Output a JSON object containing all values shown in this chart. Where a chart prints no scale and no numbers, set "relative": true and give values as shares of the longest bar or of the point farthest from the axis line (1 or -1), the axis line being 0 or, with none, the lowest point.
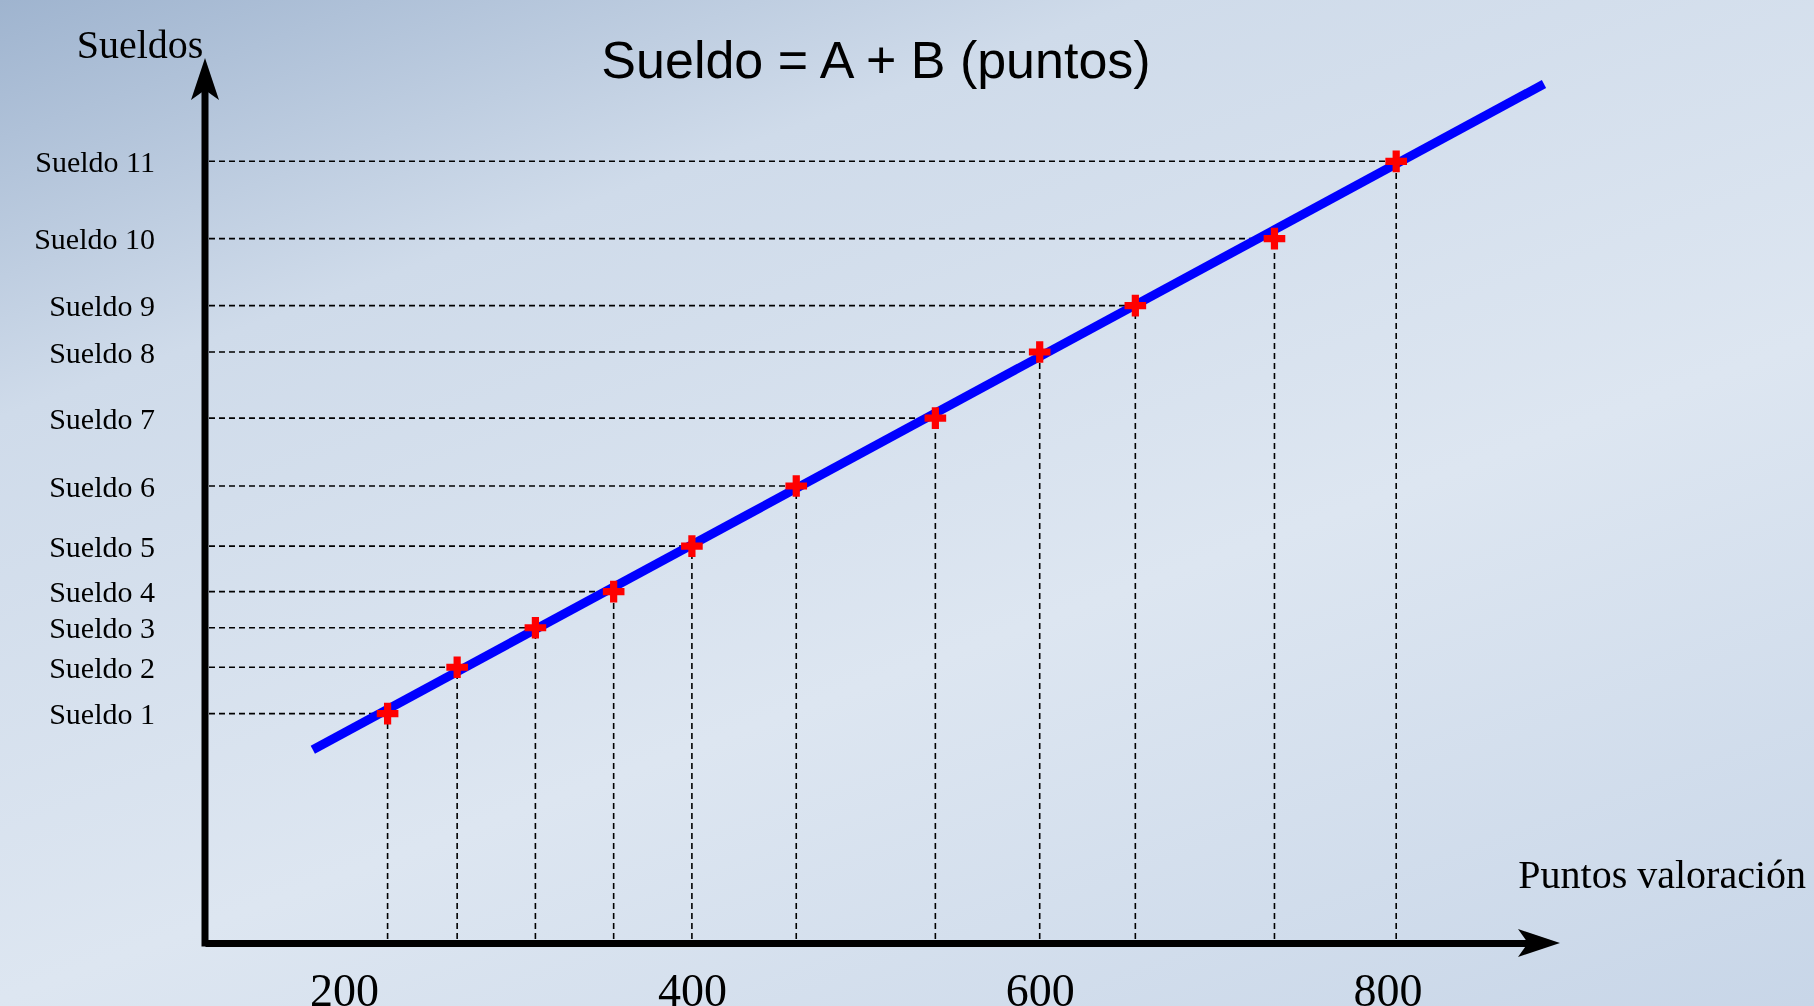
{
  "chart_data": {
    "type": "scatter",
    "title": "Sueldo = A + B (puntos)",
    "xlabel": "Puntos valoración",
    "ylabel": "Sueldos",
    "xlim": [
      120,
      890
    ],
    "xticks": [
      200,
      400,
      600,
      800
    ],
    "relative": true,
    "ref_lines": [
      {
        "axis": "y",
        "value": 0.267,
        "label": "Sueldo 1",
        "line_style": "dashed"
      },
      {
        "axis": "y",
        "value": 0.321,
        "label": "Sueldo 2",
        "line_style": "dashed"
      },
      {
        "axis": "y",
        "value": 0.367,
        "label": "Sueldo 3",
        "line_style": "dashed"
      },
      {
        "axis": "y",
        "value": 0.409,
        "label": "Sueldo 4",
        "line_style": "dashed"
      },
      {
        "axis": "y",
        "value": 0.462,
        "label": "Sueldo 5",
        "line_style": "dashed"
      },
      {
        "axis": "y",
        "value": 0.532,
        "label": "Sueldo 6",
        "line_style": "dashed"
      },
      {
        "axis": "y",
        "value": 0.611,
        "label": "Sueldo 7",
        "line_style": "dashed"
      },
      {
        "axis": "y",
        "value": 0.688,
        "label": "Sueldo 8",
        "line_style": "dashed"
      },
      {
        "axis": "y",
        "value": 0.742,
        "label": "Sueldo 9",
        "line_style": "dashed"
      },
      {
        "axis": "y",
        "value": 0.82,
        "label": "Sueldo 10",
        "line_style": "dashed"
      },
      {
        "axis": "y",
        "value": 0.91,
        "label": "Sueldo 11",
        "line_style": "dashed"
      },
      {
        "axis": "x",
        "value": 225,
        "line_style": "dashed"
      },
      {
        "axis": "x",
        "value": 265,
        "line_style": "dashed"
      },
      {
        "axis": "x",
        "value": 310,
        "line_style": "dashed"
      },
      {
        "axis": "x",
        "value": 355,
        "line_style": "dashed"
      },
      {
        "axis": "x",
        "value": 400,
        "line_style": "dashed"
      },
      {
        "axis": "x",
        "value": 460,
        "line_style": "dashed"
      },
      {
        "axis": "x",
        "value": 540,
        "line_style": "dashed"
      },
      {
        "axis": "x",
        "value": 600,
        "line_style": "dashed"
      },
      {
        "axis": "x",
        "value": 655,
        "line_style": "dashed"
      },
      {
        "axis": "x",
        "value": 735,
        "line_style": "dashed"
      },
      {
        "axis": "x",
        "value": 805,
        "line_style": "dashed"
      }
    ],
    "grid": false,
    "series": [
      {
        "type": "scatter",
        "color": "#ff0000",
        "marker": "cross",
        "x": [
          225,
          265,
          310,
          355,
          400,
          460,
          540,
          600,
          655,
          735,
          805
        ],
        "values": [
          0.267,
          0.321,
          0.367,
          0.409,
          0.462,
          0.532,
          0.611,
          0.688,
          0.742,
          0.82,
          0.91
        ]
      },
      {
        "type": "line",
        "color": "#0000ff",
        "line_style": "solid",
        "x": [
          182,
          890
        ],
        "values": [
          0.225,
          1
        ]
      }
    ]
  }
}
